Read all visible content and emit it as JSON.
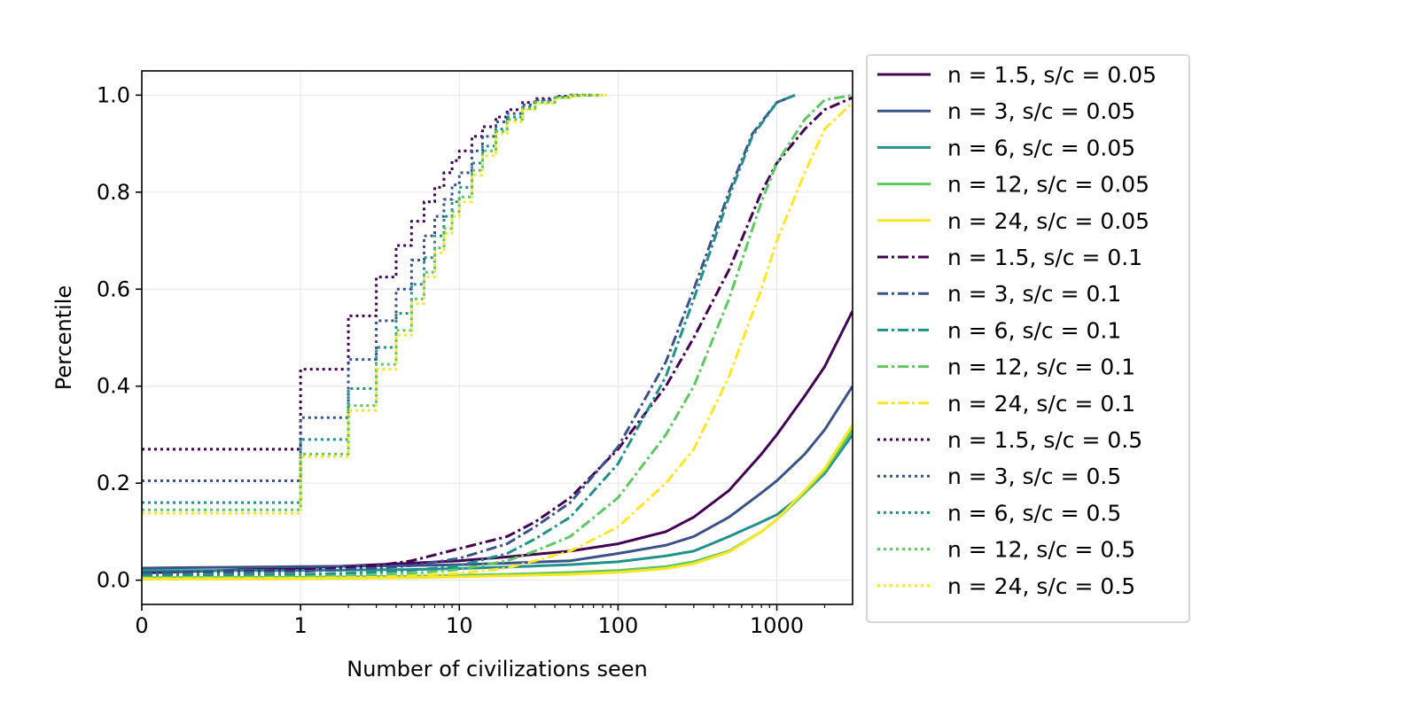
{
  "chart_data": {
    "type": "line",
    "title": "",
    "xlabel": "Number of civilizations seen",
    "ylabel": "Percentile",
    "xscale": "symlog",
    "xlim": [
      0,
      3000
    ],
    "ylim": [
      -0.05,
      1.05
    ],
    "grid": true,
    "legend_position": "outside-right",
    "x_ticks": [
      {
        "value": 0,
        "label": "0"
      },
      {
        "value": 1,
        "label": "1"
      },
      {
        "value": 10,
        "label": "10"
      },
      {
        "value": 100,
        "label": "100"
      },
      {
        "value": 1000,
        "label": "1000"
      }
    ],
    "y_ticks": [
      {
        "value": 0,
        "label": "0.0"
      },
      {
        "value": 0.2,
        "label": "0.2"
      },
      {
        "value": 0.4,
        "label": "0.4"
      },
      {
        "value": 0.6,
        "label": "0.6"
      },
      {
        "value": 0.8,
        "label": "0.8"
      },
      {
        "value": 1.0,
        "label": "1.0"
      }
    ],
    "series": [
      {
        "name": "n = 1.5, s/c = 0.05",
        "color": "#440154",
        "style": "solid",
        "x": [
          0,
          1,
          5,
          10,
          20,
          50,
          100,
          200,
          300,
          500,
          800,
          1000,
          1500,
          2000,
          3000
        ],
        "y": [
          0.015,
          0.025,
          0.035,
          0.04,
          0.048,
          0.06,
          0.075,
          0.1,
          0.13,
          0.185,
          0.26,
          0.3,
          0.38,
          0.44,
          0.555
        ]
      },
      {
        "name": "n = 3, s/c = 0.05",
        "color": "#3b528b",
        "style": "solid",
        "x": [
          0,
          1,
          5,
          10,
          20,
          50,
          100,
          200,
          300,
          500,
          800,
          1000,
          1500,
          2000,
          3000
        ],
        "y": [
          0.025,
          0.028,
          0.03,
          0.032,
          0.035,
          0.04,
          0.055,
          0.072,
          0.09,
          0.13,
          0.18,
          0.205,
          0.26,
          0.31,
          0.4
        ]
      },
      {
        "name": "n = 6, s/c = 0.05",
        "color": "#21918c",
        "style": "solid",
        "x": [
          0,
          1,
          5,
          10,
          20,
          50,
          100,
          200,
          300,
          500,
          800,
          1000,
          1500,
          2000,
          3000
        ],
        "y": [
          0.02,
          0.02,
          0.022,
          0.024,
          0.027,
          0.032,
          0.038,
          0.05,
          0.06,
          0.09,
          0.12,
          0.135,
          0.18,
          0.22,
          0.3
        ]
      },
      {
        "name": "n = 12, s/c = 0.05",
        "color": "#5ec962",
        "style": "solid",
        "x": [
          0,
          1,
          5,
          10,
          20,
          50,
          100,
          200,
          300,
          500,
          800,
          1000,
          1500,
          2000,
          3000
        ],
        "y": [
          0.005,
          0.006,
          0.008,
          0.01,
          0.012,
          0.016,
          0.02,
          0.028,
          0.038,
          0.06,
          0.1,
          0.125,
          0.18,
          0.225,
          0.31
        ]
      },
      {
        "name": "n = 24, s/c = 0.05",
        "color": "#fde725",
        "style": "solid",
        "x": [
          0,
          1,
          5,
          10,
          20,
          50,
          100,
          200,
          300,
          500,
          800,
          1000,
          1500,
          2000,
          3000
        ],
        "y": [
          0.002,
          0.003,
          0.005,
          0.007,
          0.009,
          0.012,
          0.016,
          0.024,
          0.034,
          0.058,
          0.1,
          0.125,
          0.185,
          0.23,
          0.32
        ]
      },
      {
        "name": "n = 1.5, s/c = 0.1",
        "color": "#440154",
        "style": "dashdot",
        "x": [
          0,
          1,
          3,
          5,
          10,
          20,
          30,
          50,
          100,
          200,
          300,
          500,
          800,
          1000,
          1500,
          2000,
          3000
        ],
        "y": [
          0.015,
          0.02,
          0.03,
          0.04,
          0.065,
          0.09,
          0.12,
          0.17,
          0.27,
          0.4,
          0.5,
          0.64,
          0.8,
          0.86,
          0.93,
          0.97,
          0.995
        ]
      },
      {
        "name": "n = 3, s/c = 0.1",
        "color": "#3b528b",
        "style": "dashdot",
        "x": [
          0,
          1,
          3,
          5,
          10,
          20,
          30,
          50,
          100,
          200,
          300,
          500,
          700,
          1000,
          1300
        ],
        "y": [
          0.015,
          0.018,
          0.025,
          0.03,
          0.045,
          0.075,
          0.11,
          0.16,
          0.275,
          0.45,
          0.6,
          0.8,
          0.92,
          0.985,
          1.0
        ]
      },
      {
        "name": "n = 6, s/c = 0.1",
        "color": "#21918c",
        "style": "dashdot",
        "x": [
          0,
          1,
          3,
          5,
          10,
          20,
          30,
          50,
          100,
          200,
          300,
          500,
          700,
          1000,
          1300
        ],
        "y": [
          0.01,
          0.012,
          0.016,
          0.02,
          0.03,
          0.055,
          0.085,
          0.13,
          0.24,
          0.42,
          0.58,
          0.79,
          0.915,
          0.985,
          1.0
        ]
      },
      {
        "name": "n = 12, s/c = 0.1",
        "color": "#5ec962",
        "style": "dashdot",
        "x": [
          0,
          1,
          3,
          5,
          10,
          20,
          30,
          50,
          100,
          200,
          300,
          500,
          800,
          1000,
          1500,
          2000,
          3000
        ],
        "y": [
          0.005,
          0.007,
          0.01,
          0.014,
          0.022,
          0.04,
          0.06,
          0.09,
          0.17,
          0.3,
          0.4,
          0.58,
          0.78,
          0.86,
          0.95,
          0.99,
          1.0
        ]
      },
      {
        "name": "n = 24, s/c = 0.1",
        "color": "#fde725",
        "style": "dashdot",
        "x": [
          0,
          1,
          3,
          5,
          10,
          20,
          30,
          50,
          100,
          200,
          300,
          500,
          800,
          1000,
          1500,
          2000,
          3000
        ],
        "y": [
          0.003,
          0.004,
          0.006,
          0.009,
          0.014,
          0.025,
          0.04,
          0.06,
          0.11,
          0.2,
          0.27,
          0.42,
          0.6,
          0.7,
          0.84,
          0.93,
          0.985
        ]
      },
      {
        "name": "n = 1.5, s/c = 0.5",
        "color": "#440154",
        "style": "dotted",
        "x": [
          0,
          1,
          2,
          3,
          4,
          5,
          6,
          7,
          8,
          9,
          10,
          12,
          14,
          17,
          20,
          25,
          30,
          40,
          50,
          60,
          70
        ],
        "y": [
          0.27,
          0.435,
          0.545,
          0.625,
          0.69,
          0.74,
          0.78,
          0.81,
          0.84,
          0.865,
          0.885,
          0.915,
          0.935,
          0.955,
          0.97,
          0.985,
          0.993,
          0.998,
          1.0,
          1.0,
          1.0
        ]
      },
      {
        "name": "n = 3, s/c = 0.5",
        "color": "#3b528b",
        "style": "dotted",
        "x": [
          0,
          1,
          2,
          3,
          4,
          5,
          6,
          7,
          8,
          9,
          10,
          12,
          14,
          17,
          20,
          25,
          30,
          40,
          50,
          60,
          70
        ],
        "y": [
          0.205,
          0.335,
          0.455,
          0.535,
          0.6,
          0.66,
          0.71,
          0.75,
          0.785,
          0.815,
          0.84,
          0.885,
          0.915,
          0.945,
          0.962,
          0.98,
          0.99,
          0.997,
          1.0,
          1.0,
          1.0
        ]
      },
      {
        "name": "n = 6, s/c = 0.5",
        "color": "#21918c",
        "style": "dotted",
        "x": [
          0,
          1,
          2,
          3,
          4,
          5,
          6,
          7,
          8,
          9,
          10,
          12,
          14,
          17,
          20,
          25,
          30,
          40,
          50,
          60,
          70,
          80
        ],
        "y": [
          0.16,
          0.29,
          0.395,
          0.48,
          0.55,
          0.61,
          0.665,
          0.71,
          0.75,
          0.78,
          0.81,
          0.86,
          0.895,
          0.93,
          0.955,
          0.975,
          0.987,
          0.996,
          0.999,
          1.0,
          1.0,
          1.0
        ]
      },
      {
        "name": "n = 12, s/c = 0.5",
        "color": "#5ec962",
        "style": "dotted",
        "x": [
          0,
          1,
          2,
          3,
          4,
          5,
          6,
          7,
          8,
          9,
          10,
          12,
          14,
          17,
          20,
          25,
          30,
          40,
          50,
          60,
          70,
          80
        ],
        "y": [
          0.145,
          0.26,
          0.36,
          0.445,
          0.515,
          0.58,
          0.635,
          0.685,
          0.725,
          0.76,
          0.79,
          0.845,
          0.885,
          0.925,
          0.95,
          0.972,
          0.985,
          0.995,
          0.999,
          1.0,
          1.0,
          1.0
        ]
      },
      {
        "name": "n = 24, s/c = 0.5",
        "color": "#fde725",
        "style": "dotted",
        "x": [
          0,
          1,
          2,
          3,
          4,
          5,
          6,
          7,
          8,
          9,
          10,
          12,
          14,
          17,
          20,
          25,
          30,
          40,
          50,
          60,
          70,
          85
        ],
        "y": [
          0.138,
          0.255,
          0.35,
          0.435,
          0.505,
          0.57,
          0.625,
          0.675,
          0.715,
          0.75,
          0.78,
          0.835,
          0.875,
          0.92,
          0.945,
          0.97,
          0.983,
          0.994,
          0.999,
          1.0,
          1.0,
          1.0
        ]
      }
    ]
  }
}
